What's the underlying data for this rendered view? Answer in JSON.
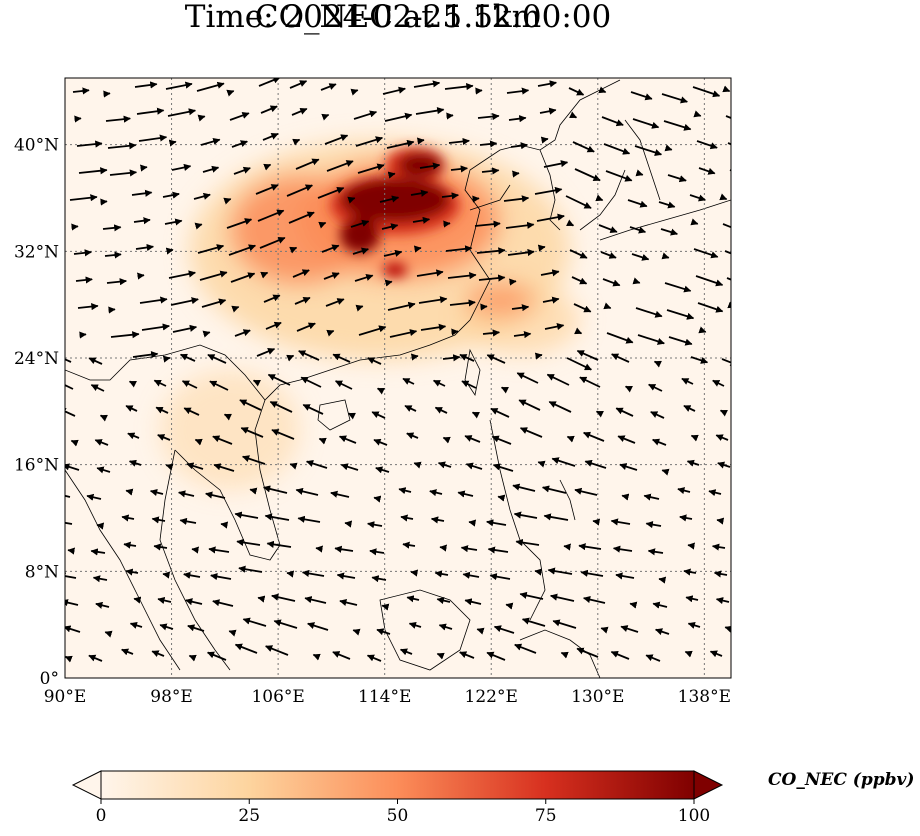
{
  "title": {
    "line1": "CO_NEC at 1.5km",
    "line2": "Time: 2024-02-25 12:00:00"
  },
  "map": {
    "lon_range": [
      90,
      140
    ],
    "lat_range": [
      0,
      45
    ],
    "lon_ticks": [
      "90°E",
      "98°E",
      "106°E",
      "114°E",
      "122°E",
      "130°E",
      "138°E"
    ],
    "lat_ticks": [
      "0°",
      "8°N",
      "16°N",
      "24°N",
      "32°N",
      "40°N"
    ],
    "lon_values": [
      90,
      98,
      106,
      114,
      122,
      130,
      138
    ],
    "lat_values": [
      0,
      8,
      16,
      24,
      32,
      40
    ],
    "gridlines": true,
    "coastlines": true,
    "wind_vectors": true
  },
  "colorbar": {
    "label": "CO_NEC (ppbv)",
    "ticks": [
      "0",
      "25",
      "50",
      "75",
      "100"
    ],
    "range": [
      0,
      100
    ],
    "extend": "both",
    "colors": [
      "#fff5eb",
      "#fdd49e",
      "#fc8d59",
      "#d7301f",
      "#7f0000"
    ]
  }
}
